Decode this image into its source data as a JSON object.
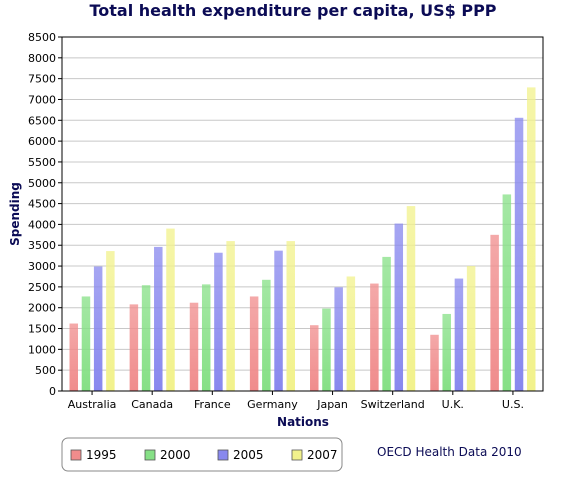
{
  "chart_data": {
    "type": "bar",
    "title": "Total health expenditure per capita, US$ PPP",
    "xlabel": "Nations",
    "ylabel": "Spending",
    "ylim": [
      0,
      8500
    ],
    "y_ticks": [
      0,
      500,
      1000,
      1500,
      2000,
      2500,
      3000,
      3500,
      4000,
      4500,
      5000,
      5500,
      6000,
      6500,
      7000,
      7500,
      8000,
      8500
    ],
    "grid": true,
    "legend_position": "bottom-left",
    "categories": [
      "Australia",
      "Canada",
      "France",
      "Germany",
      "Japan",
      "Switzerland",
      "U.K.",
      "U.S."
    ],
    "series": [
      {
        "name": "1995",
        "color": "#f08c8c",
        "values": [
          1620,
          2080,
          2120,
          2270,
          1580,
          2580,
          1350,
          3750
        ]
      },
      {
        "name": "2000",
        "color": "#86e086",
        "values": [
          2270,
          2540,
          2560,
          2670,
          1980,
          3220,
          1850,
          4720
        ]
      },
      {
        "name": "2005",
        "color": "#8888ee",
        "values": [
          2990,
          3460,
          3320,
          3370,
          2490,
          4020,
          2700,
          6560
        ]
      },
      {
        "name": "2007",
        "color": "#f2f28c",
        "values": [
          3360,
          3900,
          3600,
          3600,
          2750,
          4440,
          3000,
          7290
        ]
      }
    ],
    "source_note": "OECD Health Data 2010"
  }
}
